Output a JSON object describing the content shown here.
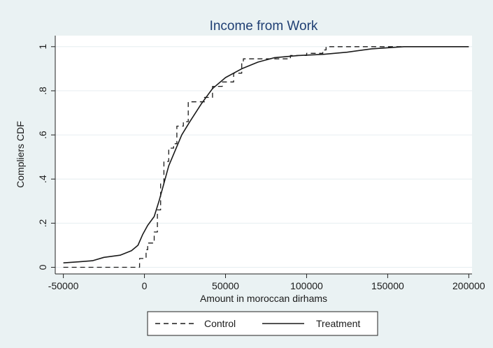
{
  "chart_data": {
    "type": "line",
    "title": "Income from Work",
    "xlabel": "Amount in moroccan dirhams",
    "ylabel": "Compliers CDF",
    "xlim": [
      -55000,
      202000
    ],
    "ylim": [
      -0.03,
      1.05
    ],
    "x_ticks": [
      -50000,
      0,
      50000,
      100000,
      150000,
      200000
    ],
    "x_tick_labels": [
      "-50000",
      "0",
      "50000",
      "100000",
      "150000",
      "200000"
    ],
    "y_ticks": [
      0,
      0.2,
      0.4,
      0.6,
      0.8,
      1
    ],
    "y_tick_labels": [
      "0",
      ".2",
      ".4",
      ".6",
      ".8",
      "1"
    ],
    "grid": true,
    "legend_position": "bottom",
    "series": [
      {
        "name": "Control",
        "style": "dashed",
        "step": true,
        "color": "#1a1a1a",
        "points": [
          [
            -50000,
            0.0
          ],
          [
            -5000,
            0.0
          ],
          [
            -3000,
            0.04
          ],
          [
            1000,
            0.08
          ],
          [
            2000,
            0.11
          ],
          [
            5000,
            0.11
          ],
          [
            6000,
            0.16
          ],
          [
            8000,
            0.26
          ],
          [
            10000,
            0.38
          ],
          [
            12000,
            0.48
          ],
          [
            15000,
            0.54
          ],
          [
            18000,
            0.56
          ],
          [
            20000,
            0.64
          ],
          [
            24000,
            0.66
          ],
          [
            27000,
            0.75
          ],
          [
            35000,
            0.75
          ],
          [
            37000,
            0.77
          ],
          [
            42000,
            0.82
          ],
          [
            48000,
            0.84
          ],
          [
            55000,
            0.88
          ],
          [
            60000,
            0.93
          ],
          [
            61000,
            0.945
          ],
          [
            80000,
            0.945
          ],
          [
            90000,
            0.96
          ],
          [
            100000,
            0.97
          ],
          [
            110000,
            0.985
          ],
          [
            112000,
            1.0
          ],
          [
            200000,
            1.0
          ]
        ]
      },
      {
        "name": "Treatment",
        "style": "solid",
        "step": false,
        "color": "#1a1a1a",
        "points": [
          [
            -50000,
            0.02
          ],
          [
            -40000,
            0.025
          ],
          [
            -32000,
            0.03
          ],
          [
            -25000,
            0.045
          ],
          [
            -15000,
            0.055
          ],
          [
            -8000,
            0.075
          ],
          [
            -4000,
            0.1
          ],
          [
            -1000,
            0.15
          ],
          [
            2000,
            0.19
          ],
          [
            6000,
            0.23
          ],
          [
            9000,
            0.3
          ],
          [
            12000,
            0.38
          ],
          [
            15000,
            0.46
          ],
          [
            19000,
            0.53
          ],
          [
            23000,
            0.6
          ],
          [
            28000,
            0.66
          ],
          [
            35000,
            0.74
          ],
          [
            42000,
            0.81
          ],
          [
            50000,
            0.86
          ],
          [
            60000,
            0.9
          ],
          [
            70000,
            0.93
          ],
          [
            80000,
            0.95
          ],
          [
            95000,
            0.96
          ],
          [
            110000,
            0.965
          ],
          [
            125000,
            0.975
          ],
          [
            140000,
            0.99
          ],
          [
            160000,
            1.0
          ],
          [
            200000,
            1.0
          ]
        ]
      }
    ]
  }
}
